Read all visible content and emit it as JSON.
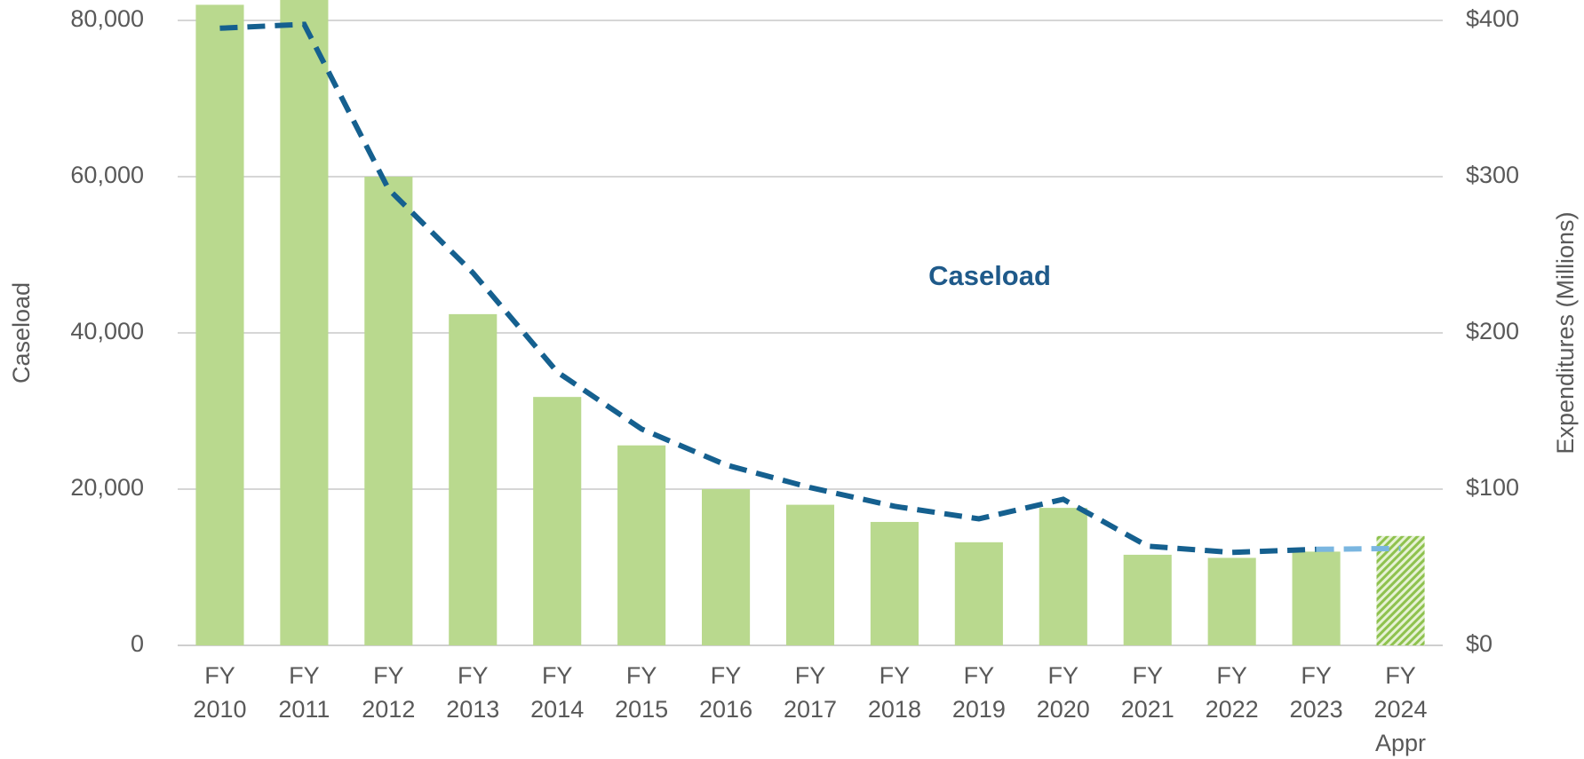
{
  "chart_data": {
    "type": "bar_line",
    "categories": [
      "FY\n2010",
      "FY\n2011",
      "FY\n2012",
      "FY\n2013",
      "FY\n2014",
      "FY\n2015",
      "FY\n2016",
      "FY\n2017",
      "FY\n2018",
      "FY\n2019",
      "FY\n2020",
      "FY\n2021",
      "FY\n2022",
      "FY\n2023",
      "FY\n2024\nAppr"
    ],
    "y_label": "Caseload",
    "y2_label": "Expenditures (Millions)",
    "annotation": "Caseload",
    "ylim": [
      0,
      80000
    ],
    "yticks": [
      {
        "value": 0,
        "label": "0"
      },
      {
        "value": 20000,
        "label": "20,000"
      },
      {
        "value": 40000,
        "label": "40,000"
      },
      {
        "value": 60000,
        "label": "60,000"
      },
      {
        "value": 80000,
        "label": "80,000"
      }
    ],
    "y2lim": [
      0,
      400
    ],
    "y2ticks": [
      {
        "value": 0,
        "label": "$0"
      },
      {
        "value": 100,
        "label": "$100"
      },
      {
        "value": 200,
        "label": "$200"
      },
      {
        "value": 300,
        "label": "$300"
      },
      {
        "value": 400,
        "label": "$400"
      }
    ],
    "grid": true,
    "series": [
      {
        "kind": "bar",
        "axis": "y2",
        "color": "#b9d98e",
        "hatch": [
          false,
          false,
          false,
          false,
          false,
          false,
          false,
          false,
          false,
          false,
          false,
          false,
          false,
          false,
          true
        ],
        "values": [
          410,
          415,
          300,
          212,
          159,
          128,
          100,
          90,
          79,
          66,
          88,
          58,
          56,
          60,
          70
        ]
      },
      {
        "kind": "line",
        "name": "Caseload",
        "axis": "y",
        "color": "#15608f",
        "values": [
          79000,
          79500,
          58400,
          47700,
          35000,
          27700,
          23100,
          20200,
          17800,
          16200,
          18700,
          12700,
          11900,
          12300,
          null
        ]
      },
      {
        "kind": "line",
        "axis": "y",
        "color": "#7ab6e0",
        "values": [
          null,
          null,
          null,
          null,
          null,
          null,
          null,
          null,
          null,
          null,
          null,
          null,
          null,
          12300,
          12400
        ]
      }
    ]
  }
}
